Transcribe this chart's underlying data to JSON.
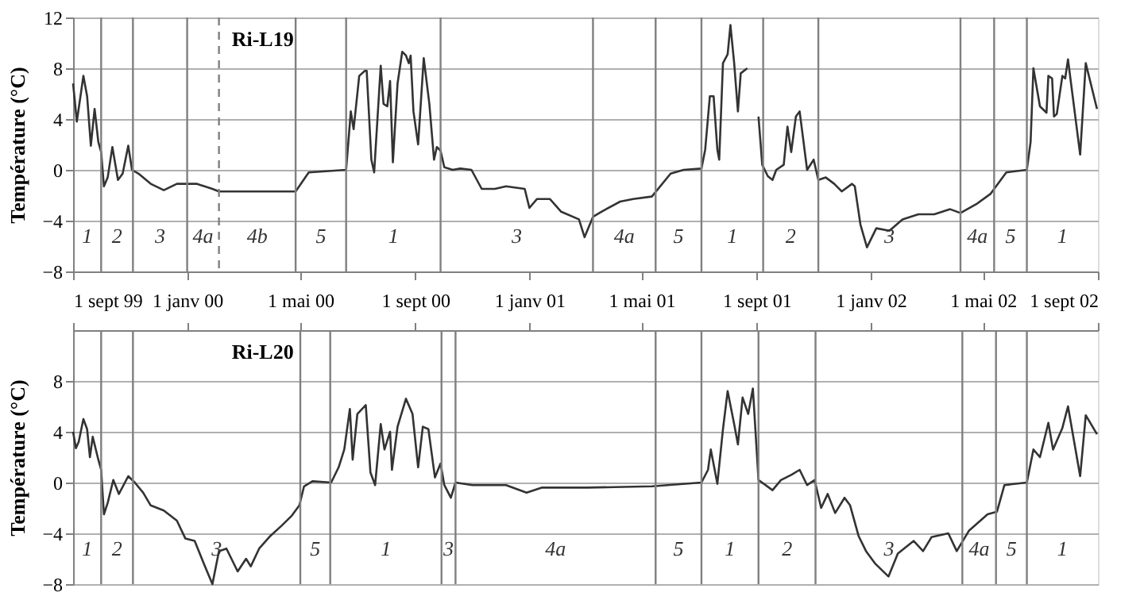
{
  "chart_data": [
    {
      "type": "line",
      "ylabel": "Température (°C)",
      "grid": "y",
      "xlim": [
        "1999-09-01",
        "2002-09-01"
      ],
      "xticks": [
        {
          "value": "1999-09-01",
          "label": "1 sept 99"
        },
        {
          "value": "2000-01-01",
          "label": "1 janv 00"
        },
        {
          "value": "2000-05-01",
          "label": "1 mai 00"
        },
        {
          "value": "2000-09-01",
          "label": "1 sept 00"
        },
        {
          "value": "2001-01-01",
          "label": "1 janv 01"
        },
        {
          "value": "2001-05-01",
          "label": "1 mai 01"
        },
        {
          "value": "2001-09-01",
          "label": "1 sept 01"
        },
        {
          "value": "2002-01-01",
          "label": "1 janv 02"
        },
        {
          "value": "2002-05-01",
          "label": "1 mai 02"
        },
        {
          "value": "2002-09-01",
          "label": "1 sept 02"
        }
      ],
      "ylim": [
        -8,
        12
      ],
      "yticks": [
        -8,
        -4,
        0,
        4,
        8,
        12
      ],
      "annotations": [
        "Ri-L19",
        "1",
        "2",
        "3",
        "4a",
        "4b",
        "5",
        "1",
        "3",
        "4a",
        "5",
        "1",
        "2",
        "3",
        "4a",
        "5",
        "1"
      ],
      "ref_lines": [
        {
          "axis": "x",
          "value": "1999-10-01",
          "color": "#808080"
        },
        {
          "axis": "x",
          "value": "1999-11-04",
          "color": "#808080"
        },
        {
          "axis": "x",
          "value": "2000-01-01",
          "color": "#808080"
        },
        {
          "axis": "x",
          "value": "2000-02-04",
          "color": "#808080",
          "line_style": "dashed"
        },
        {
          "axis": "x",
          "value": "2000-04-26",
          "color": "#808080"
        },
        {
          "axis": "x",
          "value": "2000-06-19",
          "color": "#808080"
        },
        {
          "axis": "x",
          "value": "2000-09-28",
          "color": "#808080"
        },
        {
          "axis": "x",
          "value": "2001-03-10",
          "color": "#808080"
        },
        {
          "axis": "x",
          "value": "2001-05-16",
          "color": "#808080"
        },
        {
          "axis": "x",
          "value": "2001-07-04",
          "color": "#808080"
        },
        {
          "axis": "x",
          "value": "2001-09-08",
          "color": "#808080"
        },
        {
          "axis": "x",
          "value": "2001-11-06",
          "color": "#808080"
        },
        {
          "axis": "x",
          "value": "2002-04-07",
          "color": "#808080"
        },
        {
          "axis": "x",
          "value": "2002-05-13",
          "color": "#808080"
        },
        {
          "axis": "x",
          "value": "2002-06-17",
          "color": "#808080"
        }
      ],
      "x": [
        "1999-09-01",
        "1999-09-05",
        "1999-09-12",
        "1999-09-16",
        "1999-09-20",
        "1999-09-24",
        "1999-09-28",
        "1999-10-01",
        "1999-10-04",
        "1999-10-08",
        "1999-10-13",
        "1999-10-19",
        "1999-10-24",
        "1999-10-30",
        "1999-11-03",
        "1999-11-10",
        "1999-11-23",
        "1999-12-07",
        "1999-12-21",
        "2000-01-11",
        "2000-01-28",
        "2000-02-04",
        "2000-04-26",
        "2000-05-10",
        "2000-06-19",
        "2000-06-24",
        "2000-06-27",
        "2000-07-03",
        "2000-07-09",
        "2000-07-11",
        "2000-07-16",
        "2000-07-19",
        "2000-07-26",
        "2000-07-29",
        "2000-08-02",
        "2000-08-05",
        "2000-08-08",
        "2000-08-13",
        "2000-08-18",
        "2000-08-22",
        "2000-08-25",
        "2000-08-27",
        "2000-08-30",
        "2000-09-04",
        "2000-09-10",
        "2000-09-16",
        "2000-09-21",
        "2000-09-24",
        "2000-09-28",
        "2000-10-02",
        "2000-10-11",
        "2000-10-19",
        "2000-10-31",
        "2000-11-11",
        "2000-11-25",
        "2000-12-07",
        "2000-12-27",
        "2001-01-01",
        "2001-01-09",
        "2001-01-23",
        "2001-02-04",
        "2001-02-23",
        "2001-03-01",
        "2001-03-10",
        "2001-03-19",
        "2001-04-08",
        "2001-04-22",
        "2001-05-12",
        "2001-06-01",
        "2001-06-15",
        "2001-07-04",
        "2001-07-08",
        "2001-07-13",
        "2001-07-17",
        "2001-07-21",
        "2001-07-23",
        "2001-07-27",
        "2001-08-01",
        "2001-08-04",
        "2001-08-08",
        "2001-08-12",
        "2001-08-15",
        "2001-08-22",
        "2001-08-28",
        "2001-09-03",
        "2001-09-07",
        "2001-09-13",
        "2001-09-18",
        "2001-09-22",
        "2001-09-30",
        "2001-10-04",
        "2001-10-08",
        "2001-10-13",
        "2001-10-17",
        "2001-10-25",
        "2001-11-01",
        "2001-11-06",
        "2001-11-14",
        "2001-11-23",
        "2001-12-01",
        "2001-12-12",
        "2001-12-15",
        "2001-12-21",
        "2001-12-28",
        "2002-01-07",
        "2002-01-21",
        "2002-02-04",
        "2002-02-21",
        "2002-03-10",
        "2002-03-27",
        "2002-04-07",
        "2002-04-24",
        "2002-05-09",
        "2002-05-26",
        "2002-06-17",
        "2002-06-21",
        "2002-06-24",
        "2002-07-01",
        "2002-07-08",
        "2002-07-10",
        "2002-07-14",
        "2002-07-16",
        "2002-07-19",
        "2002-07-25",
        "2002-07-28",
        "2002-07-31",
        "2002-08-05",
        "2002-08-13",
        "2002-08-19",
        "2002-08-31"
      ],
      "series": [
        {
          "color": "#333333",
          "values": [
            6.8,
            3.8,
            7.4,
            5.8,
            1.9,
            4.8,
            2.2,
            1.4,
            -1.3,
            -0.6,
            1.8,
            -0.8,
            -0.3,
            1.9,
            0,
            -0.3,
            -1.1,
            -1.6,
            -1.1,
            -1.1,
            -1.5,
            -1.7,
            -1.7,
            -0.2,
            0,
            4.6,
            3.2,
            7.4,
            7.8,
            7.8,
            0.8,
            -0.2,
            8.2,
            5.2,
            5.0,
            7.0,
            0.6,
            6.8,
            9.3,
            9.0,
            8.4,
            9.0,
            4.6,
            2.0,
            8.8,
            5.2,
            0.8,
            1.8,
            1.5,
            0.2,
            0,
            0.1,
            0,
            -1.5,
            -1.5,
            -1.3,
            -1.5,
            -3.0,
            -2.3,
            -2.3,
            -3.3,
            -3.9,
            -5.3,
            -3.7,
            -3.3,
            -2.5,
            -2.3,
            -2.1,
            -0.3,
            0,
            0.1,
            1.6,
            5.8,
            5.8,
            1.6,
            0.8,
            8.4,
            9.1,
            11.4,
            8.4,
            4.6,
            7.6,
            8.0,
            null,
            4.2,
            0.4,
            -0.5,
            -0.8,
            0,
            0.4,
            3.4,
            1.4,
            4.2,
            4.6,
            0,
            0.8,
            -0.8,
            -0.6,
            -1.1,
            -1.7,
            -1.1,
            -1.3,
            -4.3,
            -6.1,
            -4.6,
            -4.8,
            -3.9,
            -3.5,
            -3.5,
            -3.1,
            -3.4,
            -2.7,
            -1.9,
            -0.2,
            0,
            2.2,
            8.0,
            5.0,
            4.5,
            7.4,
            7.2,
            4.2,
            4.4,
            7.4,
            7.2,
            8.7,
            5.8,
            1.2,
            8.4,
            4.8
          ]
        }
      ]
    },
    {
      "type": "line",
      "ylabel": "Température (°C)",
      "grid": "y",
      "tick_labels": "y",
      "xlim": [
        "1999-09-01",
        "2002-09-01"
      ],
      "xticks": [
        {
          "value": "1999-09-01",
          "label": null
        },
        {
          "value": "2000-01-01",
          "label": null
        },
        {
          "value": "2000-05-01",
          "label": null
        },
        {
          "value": "2000-09-01",
          "label": null
        },
        {
          "value": "2001-01-01",
          "label": null
        },
        {
          "value": "2001-05-01",
          "label": null
        },
        {
          "value": "2001-09-01",
          "label": null
        },
        {
          "value": "2002-01-01",
          "label": null
        },
        {
          "value": "2002-05-01",
          "label": null
        },
        {
          "value": "2002-09-01",
          "label": null
        }
      ],
      "ylim": [
        -8,
        12
      ],
      "yticks": [
        -8,
        -4,
        0,
        4,
        8
      ],
      "annotations": [
        "Ri-L20",
        "1",
        "2",
        "3",
        "5",
        "1",
        "3",
        "4a",
        "5",
        "1",
        "2",
        "3",
        "4a",
        "5",
        "1"
      ],
      "ref_lines": [
        {
          "axis": "x",
          "value": "1999-10-01",
          "color": "#808080"
        },
        {
          "axis": "x",
          "value": "1999-11-04",
          "color": "#808080"
        },
        {
          "axis": "x",
          "value": "2000-05-01",
          "color": "#808080"
        },
        {
          "axis": "x",
          "value": "2000-06-02",
          "color": "#808080"
        },
        {
          "axis": "x",
          "value": "2000-09-29",
          "color": "#808080"
        },
        {
          "axis": "x",
          "value": "2000-10-14",
          "color": "#808080"
        },
        {
          "axis": "x",
          "value": "2001-05-16",
          "color": "#808080"
        },
        {
          "axis": "x",
          "value": "2001-07-04",
          "color": "#808080"
        },
        {
          "axis": "x",
          "value": "2001-09-03",
          "color": "#808080"
        },
        {
          "axis": "x",
          "value": "2001-11-03",
          "color": "#808080"
        },
        {
          "axis": "x",
          "value": "2002-04-09",
          "color": "#808080"
        },
        {
          "axis": "x",
          "value": "2002-05-15",
          "color": "#808080"
        },
        {
          "axis": "x",
          "value": "2002-06-17",
          "color": "#808080"
        }
      ],
      "x": [
        "1999-09-01",
        "1999-09-04",
        "1999-09-07",
        "1999-09-12",
        "1999-09-16",
        "1999-09-19",
        "1999-09-22",
        "1999-09-28",
        "1999-10-01",
        "1999-10-04",
        "1999-10-08",
        "1999-10-14",
        "1999-10-20",
        "1999-10-30",
        "1999-11-06",
        "1999-11-15",
        "1999-11-23",
        "1999-12-07",
        "1999-12-21",
        "1999-12-30",
        "2000-01-09",
        "2000-01-20",
        "2000-01-28",
        "2000-02-04",
        "2000-02-12",
        "2000-02-24",
        "2000-03-04",
        "2000-03-09",
        "2000-03-18",
        "2000-03-30",
        "2000-04-11",
        "2000-04-22",
        "2000-04-30",
        "2000-05-05",
        "2000-05-14",
        "2000-06-03",
        "2000-06-11",
        "2000-06-17",
        "2000-06-23",
        "2000-06-26",
        "2000-07-01",
        "2000-07-10",
        "2000-07-15",
        "2000-07-20",
        "2000-07-26",
        "2000-07-30",
        "2000-08-05",
        "2000-08-07",
        "2000-08-13",
        "2000-08-22",
        "2000-08-29",
        "2000-09-04",
        "2000-09-09",
        "2000-09-15",
        "2000-09-22",
        "2000-09-28",
        "2000-10-02",
        "2000-10-09",
        "2000-10-14",
        "2000-11-01",
        "2000-12-07",
        "2000-12-29",
        "2001-01-14",
        "2001-03-04",
        "2001-05-12",
        "2001-07-04",
        "2001-07-11",
        "2001-07-14",
        "2001-07-21",
        "2001-07-27",
        "2001-08-01",
        "2001-08-08",
        "2001-08-12",
        "2001-08-17",
        "2001-08-23",
        "2001-08-28",
        "2001-09-03",
        "2001-09-18",
        "2001-09-27",
        "2001-10-08",
        "2001-10-17",
        "2001-10-25",
        "2001-11-02",
        "2001-11-09",
        "2001-11-16",
        "2001-11-24",
        "2001-12-04",
        "2001-12-10",
        "2001-12-19",
        "2001-12-27",
        "2002-01-06",
        "2002-01-20",
        "2002-01-30",
        "2002-02-16",
        "2002-02-26",
        "2002-03-07",
        "2002-03-25",
        "2002-04-03",
        "2002-04-16",
        "2002-05-06",
        "2002-05-16",
        "2002-05-24",
        "2002-06-17",
        "2002-06-24",
        "2002-07-01",
        "2002-07-10",
        "2002-07-15",
        "2002-07-25",
        "2002-07-31",
        "2002-08-13",
        "2002-08-19",
        "2002-08-31"
      ],
      "series": [
        {
          "color": "#333333",
          "values": [
            4.0,
            2.7,
            3.2,
            5.0,
            4.2,
            2.0,
            3.6,
            1.8,
            1.0,
            -2.5,
            -1.6,
            0.2,
            -0.9,
            0.5,
            0,
            -0.8,
            -1.8,
            -2.2,
            -3.0,
            -4.4,
            -4.6,
            -6.6,
            -8.0,
            -5.4,
            -5.2,
            -7.0,
            -6.0,
            -6.6,
            -5.2,
            -4.2,
            -3.4,
            -2.6,
            -1.8,
            -0.3,
            0.1,
            0,
            1.2,
            2.6,
            5.8,
            1.8,
            5.4,
            6.1,
            0.8,
            -0.2,
            4.6,
            2.6,
            4.0,
            1.0,
            4.4,
            6.6,
            5.4,
            1.2,
            4.4,
            4.2,
            0.4,
            1.5,
            -0.2,
            -1.2,
            0,
            -0.2,
            -0.2,
            -0.8,
            -0.4,
            -0.4,
            -0.3,
            0,
            1.0,
            2.6,
            -0.1,
            4.2,
            7.2,
            4.6,
            3.0,
            6.7,
            5.4,
            7.4,
            0.2,
            -0.6,
            0.2,
            0.6,
            1.0,
            -0.2,
            0.2,
            -2.0,
            -0.9,
            -2.4,
            -1.2,
            -1.8,
            -4.2,
            -5.4,
            -6.4,
            -7.4,
            -5.6,
            -4.6,
            -5.4,
            -4.3,
            -4.0,
            -5.4,
            -3.8,
            -2.5,
            -2.3,
            -0.2,
            0,
            2.6,
            2.0,
            4.7,
            2.6,
            4.3,
            6.0,
            0.5,
            5.3,
            3.8
          ]
        }
      ]
    }
  ]
}
